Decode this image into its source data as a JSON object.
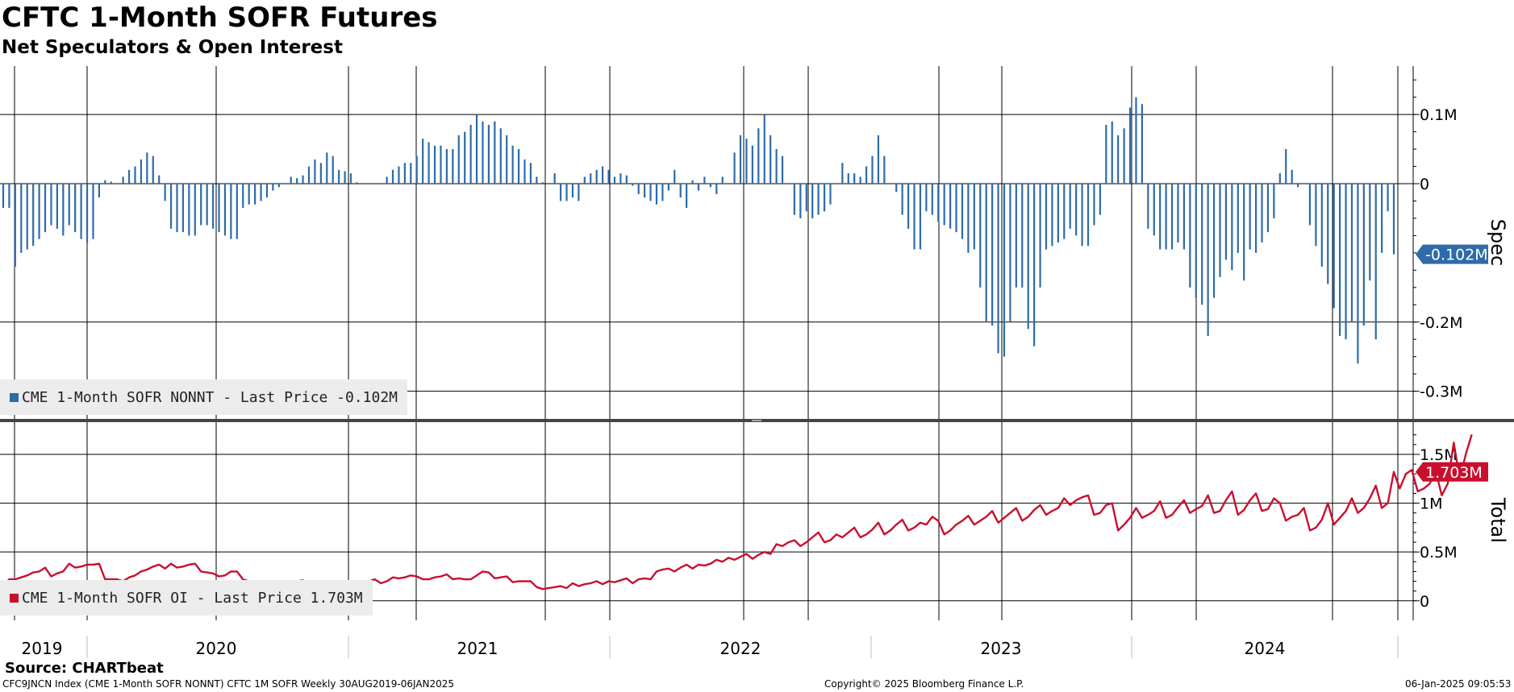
{
  "header": {
    "title": "CFTC 1-Month SOFR Futures",
    "subtitle": "Net Speculators & Open Interest"
  },
  "colors": {
    "spec": "#2e6ba8",
    "total": "#c8102e",
    "legend_bg": "#ececec"
  },
  "chart_data": [
    {
      "type": "bar",
      "panel": "top",
      "axis_title": "Spec",
      "yticks": [
        {
          "v": 0.1,
          "label": "0.1M"
        },
        {
          "v": 0,
          "label": "0"
        },
        {
          "v": -0.2,
          "label": "-0.2M"
        },
        {
          "v": -0.3,
          "label": "-0.3M"
        }
      ],
      "ylim": [
        -0.34,
        0.17
      ],
      "last_value_label": "-0.102M",
      "legend": "CME 1-Month SOFR NONNT - Last Price -0.102M",
      "series": [
        {
          "name": "CME 1-Month SOFR NONNT",
          "values": [
            -0.035,
            -0.035,
            -0.12,
            -0.1,
            -0.095,
            -0.09,
            -0.08,
            -0.07,
            -0.06,
            -0.065,
            -0.075,
            -0.06,
            -0.07,
            -0.08,
            -0.085,
            -0.08,
            -0.02,
            0.005,
            0.003,
            0.0,
            0.01,
            0.02,
            0.025,
            0.035,
            0.045,
            0.04,
            0.012,
            -0.025,
            -0.065,
            -0.07,
            -0.07,
            -0.075,
            -0.075,
            -0.06,
            -0.06,
            -0.065,
            -0.07,
            -0.075,
            -0.08,
            -0.08,
            -0.035,
            -0.03,
            -0.03,
            -0.025,
            -0.02,
            -0.01,
            -0.005,
            0.0,
            0.01,
            0.008,
            0.012,
            0.025,
            0.035,
            0.03,
            0.045,
            0.04,
            0.02,
            0.018,
            0.015,
            0.002,
            0.0,
            0.0,
            0.0,
            0.0,
            0.01,
            0.02,
            0.025,
            0.03,
            0.03,
            0.04,
            0.065,
            0.06,
            0.055,
            0.055,
            0.05,
            0.05,
            0.07,
            0.075,
            0.085,
            0.1,
            0.09,
            0.085,
            0.09,
            0.08,
            0.07,
            0.055,
            0.05,
            0.035,
            0.03,
            0.01,
            0.002,
            0.0,
            0.015,
            -0.025,
            -0.025,
            -0.02,
            -0.025,
            0.01,
            0.015,
            0.02,
            0.025,
            0.02,
            0.01,
            0.015,
            0.012,
            -0.003,
            -0.015,
            -0.02,
            -0.025,
            -0.03,
            -0.025,
            -0.01,
            0.02,
            -0.02,
            -0.035,
            0.005,
            -0.01,
            0.01,
            -0.005,
            -0.015,
            0.01,
            0.0,
            0.045,
            0.07,
            0.065,
            0.055,
            0.08,
            0.1,
            0.07,
            0.05,
            0.04,
            0.0,
            -0.045,
            -0.05,
            -0.04,
            -0.05,
            -0.045,
            -0.04,
            -0.03,
            0.0,
            0.03,
            0.015,
            0.015,
            0.01,
            0.025,
            0.04,
            0.07,
            0.04,
            0.0,
            -0.012,
            -0.045,
            -0.065,
            -0.095,
            -0.095,
            -0.04,
            -0.045,
            -0.055,
            -0.06,
            -0.065,
            -0.07,
            -0.08,
            -0.1,
            -0.095,
            -0.15,
            -0.2,
            -0.205,
            -0.245,
            -0.25,
            -0.2,
            -0.15,
            -0.15,
            -0.21,
            -0.235,
            -0.15,
            -0.095,
            -0.09,
            -0.085,
            -0.08,
            -0.065,
            -0.075,
            -0.09,
            -0.09,
            -0.06,
            -0.045,
            0.085,
            0.09,
            0.07,
            0.08,
            0.11,
            0.125,
            0.115,
            -0.065,
            -0.075,
            -0.095,
            -0.095,
            -0.095,
            -0.085,
            -0.095,
            -0.15,
            -0.165,
            -0.175,
            -0.22,
            -0.165,
            -0.135,
            -0.11,
            -0.125,
            -0.1,
            -0.14,
            -0.095,
            -0.1,
            -0.085,
            -0.07,
            -0.05,
            0.015,
            0.05,
            0.02,
            -0.005,
            0.0,
            -0.06,
            -0.09,
            -0.12,
            -0.145,
            -0.18,
            -0.22,
            -0.225,
            -0.2,
            -0.26,
            -0.205,
            -0.14,
            -0.225,
            -0.1,
            -0.04,
            -0.102
          ]
        }
      ]
    },
    {
      "type": "line",
      "panel": "bottom",
      "axis_title": "Total",
      "yticks": [
        {
          "v": 1.5,
          "label": "1.5M"
        },
        {
          "v": 1.0,
          "label": "1M"
        },
        {
          "v": 0.5,
          "label": "0.5M"
        },
        {
          "v": 0,
          "label": "0"
        }
      ],
      "ylim": [
        -0.2,
        1.83
      ],
      "last_value_label": "1.703M",
      "legend": "CME 1-Month SOFR OI - Last Price 1.703M",
      "series": [
        {
          "name": "CME 1-Month SOFR OI",
          "values": [
            0.15,
            0.22,
            0.22,
            0.24,
            0.26,
            0.29,
            0.3,
            0.34,
            0.25,
            0.28,
            0.3,
            0.38,
            0.34,
            0.35,
            0.37,
            0.37,
            0.38,
            0.22,
            0.22,
            0.22,
            0.2,
            0.24,
            0.26,
            0.3,
            0.32,
            0.35,
            0.37,
            0.33,
            0.38,
            0.34,
            0.35,
            0.37,
            0.38,
            0.3,
            0.29,
            0.28,
            0.25,
            0.26,
            0.3,
            0.3,
            0.22,
            0.2,
            0.2,
            0.18,
            0.15,
            0.17,
            0.14,
            0.18,
            0.17,
            0.2,
            0.21,
            0.15,
            0.18,
            0.19,
            0.2,
            0.17,
            0.19,
            0.15,
            0.18,
            0.17,
            0.19,
            0.2,
            0.22,
            0.18,
            0.2,
            0.24,
            0.23,
            0.24,
            0.26,
            0.25,
            0.22,
            0.22,
            0.24,
            0.25,
            0.27,
            0.22,
            0.23,
            0.22,
            0.22,
            0.26,
            0.3,
            0.29,
            0.23,
            0.24,
            0.25,
            0.19,
            0.2,
            0.2,
            0.2,
            0.14,
            0.12,
            0.13,
            0.14,
            0.15,
            0.13,
            0.18,
            0.15,
            0.17,
            0.18,
            0.2,
            0.17,
            0.2,
            0.19,
            0.21,
            0.23,
            0.18,
            0.22,
            0.23,
            0.22,
            0.3,
            0.32,
            0.33,
            0.3,
            0.34,
            0.37,
            0.33,
            0.37,
            0.36,
            0.38,
            0.42,
            0.4,
            0.44,
            0.42,
            0.45,
            0.48,
            0.43,
            0.47,
            0.5,
            0.48,
            0.58,
            0.56,
            0.6,
            0.62,
            0.56,
            0.6,
            0.65,
            0.7,
            0.6,
            0.62,
            0.68,
            0.65,
            0.7,
            0.75,
            0.65,
            0.68,
            0.73,
            0.8,
            0.68,
            0.72,
            0.78,
            0.83,
            0.72,
            0.75,
            0.8,
            0.78,
            0.86,
            0.82,
            0.68,
            0.72,
            0.78,
            0.82,
            0.87,
            0.78,
            0.82,
            0.86,
            0.92,
            0.8,
            0.85,
            0.9,
            0.95,
            0.82,
            0.86,
            0.93,
            0.98,
            0.88,
            0.92,
            0.95,
            1.05,
            0.98,
            1.03,
            1.06,
            1.08,
            0.88,
            0.9,
            0.98,
            1.0,
            0.72,
            0.78,
            0.85,
            0.95,
            0.85,
            0.88,
            0.92,
            1.02,
            0.85,
            0.88,
            0.96,
            1.03,
            0.9,
            0.94,
            0.97,
            1.08,
            0.9,
            0.92,
            1.03,
            1.12,
            0.88,
            0.93,
            1.03,
            1.1,
            0.92,
            0.94,
            1.05,
            1.0,
            0.82,
            0.86,
            0.88,
            0.95,
            0.72,
            0.75,
            0.83,
            1.0,
            0.78,
            0.85,
            0.92,
            1.05,
            0.9,
            0.95,
            1.05,
            1.18,
            0.95,
            1.0,
            1.32,
            1.15,
            1.3,
            1.34,
            1.12,
            1.15,
            1.2,
            1.33,
            1.08,
            1.2,
            1.62,
            1.25,
            1.5,
            1.703
          ]
        }
      ]
    }
  ],
  "x_axis": {
    "years": [
      "2019",
      "2020",
      "2021",
      "2022",
      "2023",
      "2024"
    ]
  },
  "footer": {
    "source": "Source: CHARTbeat",
    "left": "CFC9JNCN Index (CME 1-Month SOFR NONNT) CFTC 1M SOFR  Weekly 30AUG2019-06JAN2025",
    "center": "Copyright© 2025 Bloomberg Finance L.P.",
    "right": "06-Jan-2025 09:05:53"
  }
}
